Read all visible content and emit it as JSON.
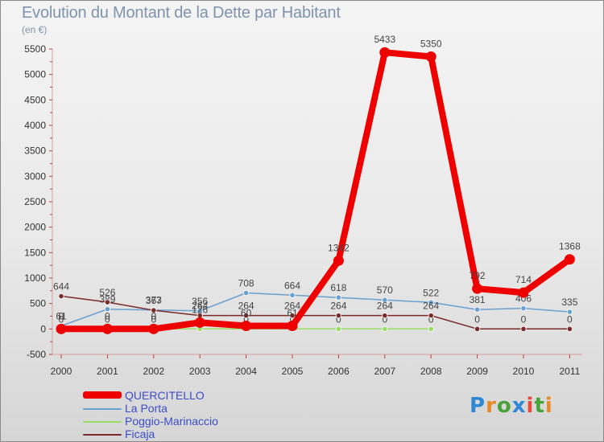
{
  "title": "Evolution du Montant de la Dette par Habitant",
  "unit": "(en €)",
  "logo": {
    "text": "Proxiti",
    "colors": [
      "#2f87d6",
      "#e8892a",
      "#4aa23a",
      "#2f87d6",
      "#e84a3a",
      "#4aa23a",
      "#e8892a"
    ]
  },
  "chart_data": {
    "type": "line",
    "categories": [
      "2000",
      "2001",
      "2002",
      "2003",
      "2004",
      "2005",
      "2006",
      "2007",
      "2008",
      "2009",
      "2010",
      "2011"
    ],
    "ylim": [
      -500,
      5500
    ],
    "yticks": [
      -500,
      0,
      500,
      1000,
      1500,
      2000,
      2500,
      3000,
      3500,
      4000,
      4500,
      5000,
      5500
    ],
    "grid": false,
    "legend_position": "bottom-left",
    "series": [
      {
        "name": "QUERCITELLO",
        "color": "#ee0000",
        "values": [
          0,
          0,
          0,
          126,
          60,
          61,
          1342,
          5433,
          5350,
          792,
          714,
          1368
        ],
        "labels": [
          "0",
          "0",
          "0",
          "126",
          "60",
          "61",
          "1342",
          "5433",
          "5350",
          "792",
          "714",
          "1368"
        ]
      },
      {
        "name": "La Porta",
        "color": "#6aa0cf",
        "values": [
          61,
          389,
          373,
          356,
          708,
          664,
          618,
          570,
          522,
          381,
          406,
          335
        ],
        "labels": [
          "61",
          "389",
          "373",
          "356",
          "708",
          "664",
          "618",
          "570",
          "522",
          "381",
          "406",
          "335"
        ]
      },
      {
        "name": "Poggio-Marinaccio",
        "color": "#99dd66",
        "values": [
          0,
          0,
          0,
          0,
          0,
          0,
          0,
          0,
          0,
          null,
          null,
          null
        ],
        "labels": [
          "0",
          "0",
          "0",
          "0",
          "0",
          "0",
          "0",
          "0",
          "0",
          "",
          "",
          ""
        ]
      },
      {
        "name": "Ficaja",
        "color": "#7a2a2a",
        "values": [
          644,
          526,
          367,
          264,
          264,
          264,
          264,
          264,
          264,
          0,
          0,
          0
        ],
        "labels": [
          "644",
          "526",
          "367",
          "264",
          "264",
          "264",
          "264",
          "264",
          "264",
          "0",
          "0",
          "0"
        ]
      }
    ]
  }
}
